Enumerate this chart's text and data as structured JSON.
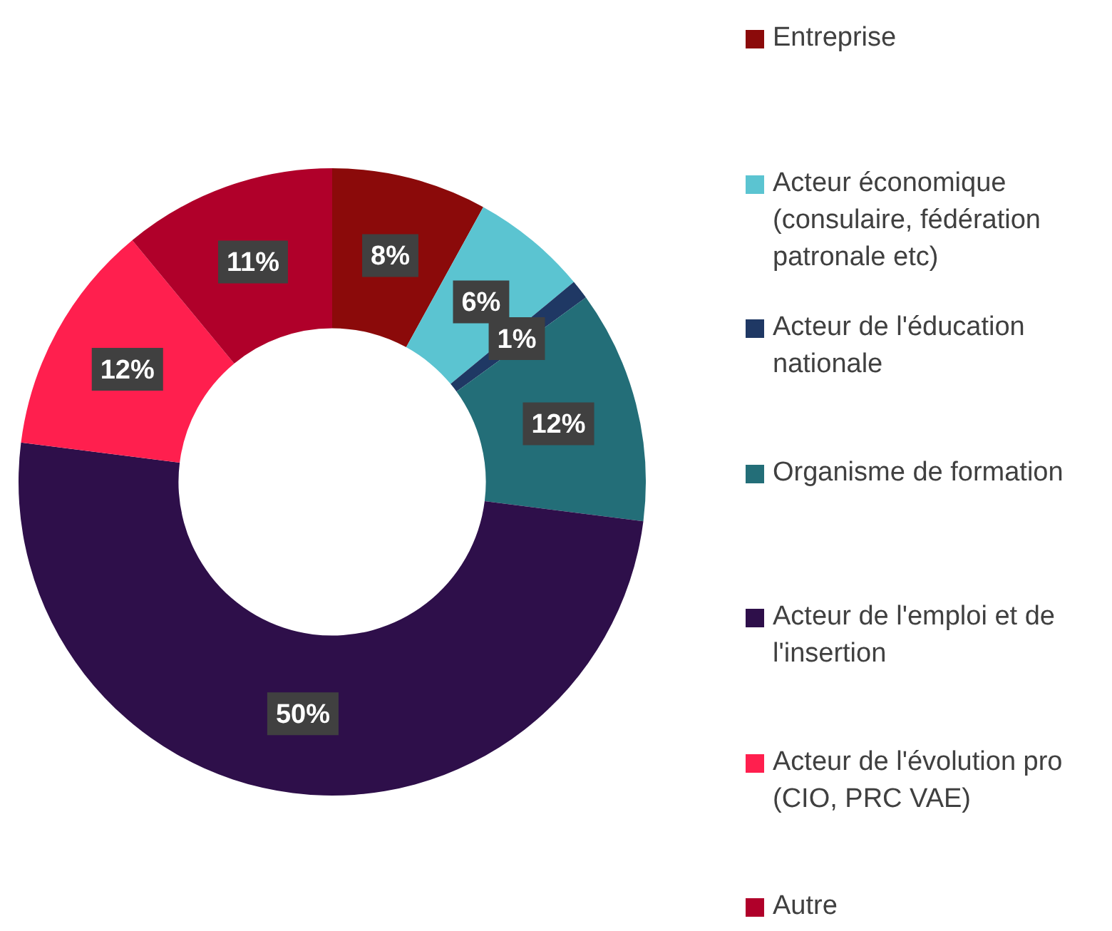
{
  "chart_data": {
    "type": "donut",
    "categories": [
      "Entreprise",
      "Acteur économique (consulaire, fédération patronale etc)",
      "Acteur de l'éducation nationale",
      "Organisme de formation",
      "Acteur de l'emploi et de l'insertion",
      "Acteur de l'évolution pro (CIO, PRC VAE)",
      "Autre"
    ],
    "values": [
      8,
      6,
      1,
      12,
      50,
      12,
      11
    ],
    "value_labels": [
      "8%",
      "6%",
      "1%",
      "12%",
      "50%",
      "12%",
      "11%"
    ],
    "colors": [
      "#8b0a0a",
      "#5bc4d1",
      "#1f3864",
      "#236e78",
      "#2e0f4a",
      "#ff1f4e",
      "#b0002a"
    ],
    "legend": "right"
  }
}
